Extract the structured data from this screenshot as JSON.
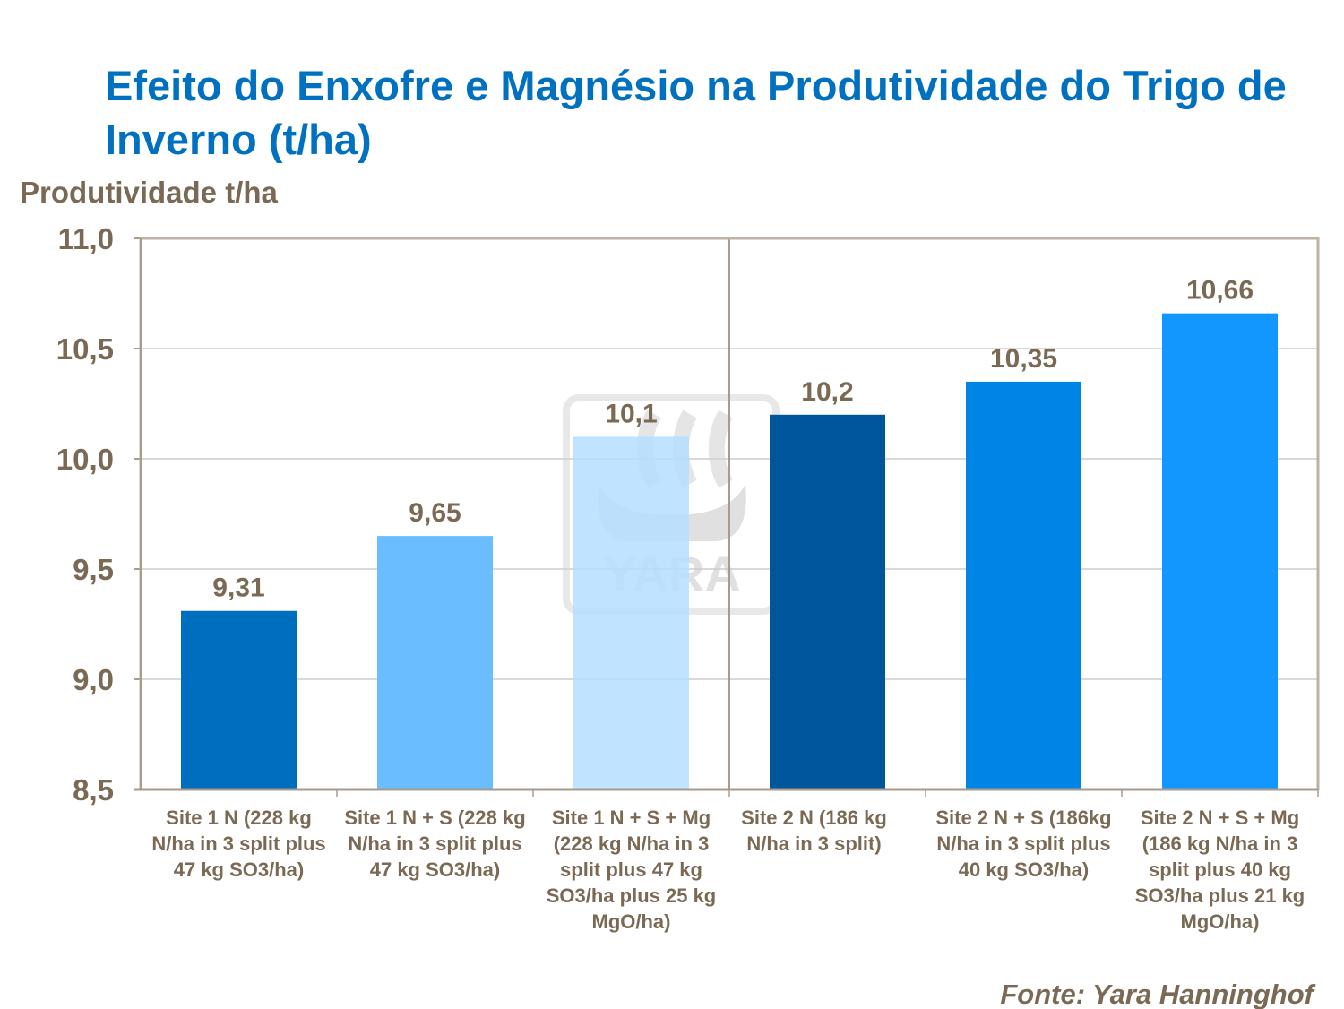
{
  "title": "Efeito do Enxofre e Magnésio na Produtividade do Trigo de Inverno (t/ha)",
  "source": "Fonte: Yara Hanninghof",
  "watermark": "YARA",
  "chart_data": {
    "type": "bar",
    "title": "Efeito do Enxofre e Magnésio na Produtividade do Trigo de Inverno (t/ha)",
    "ylabel": "Produtividade t/ha",
    "xlabel": "",
    "ylim": [
      8.5,
      11.0
    ],
    "yticks": [
      "8,5",
      "9,0",
      "9,5",
      "10,0",
      "10,5",
      "11,0"
    ],
    "grid": true,
    "categories": [
      "Site 1 N (228 kg N/ha in 3 split plus 47 kg SO3/ha)",
      "Site 1 N + S (228 kg N/ha in 3 split plus 47 kg SO3/ha)",
      "Site 1 N + S + Mg (228 kg N/ha in 3 split plus 47 kg SO3/ha plus 25 kg MgO/ha)",
      "Site 2 N (186 kg N/ha in 3 split)",
      "Site 2 N + S (186kg N/ha in 3 split plus 40 kg SO3/ha)",
      "Site 2 N + S + Mg (186 kg N/ha in 3 split plus 40 kg SO3/ha plus 21 kg MgO/ha)"
    ],
    "values": [
      9.31,
      9.65,
      10.1,
      10.2,
      10.35,
      10.66
    ],
    "data_labels": [
      "9,31",
      "9,65",
      "10,1",
      "10,2",
      "10,35",
      "10,66"
    ],
    "colors": [
      "#006EBE",
      "#6ABEFF",
      "#B5DEFF",
      "#00569A",
      "#0085E6",
      "#1296FF"
    ]
  }
}
